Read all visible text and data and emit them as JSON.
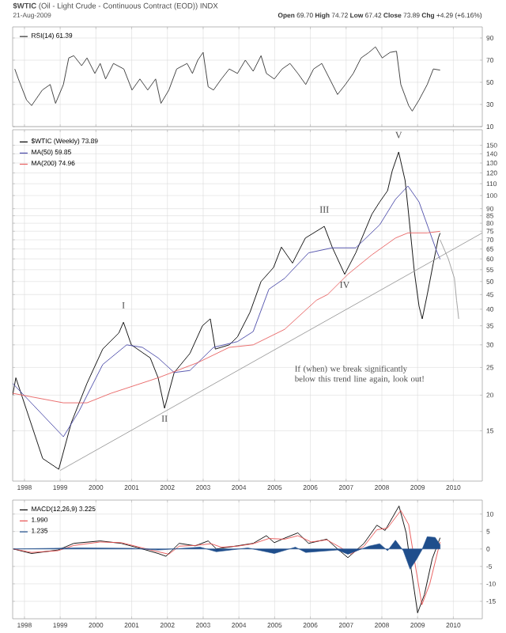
{
  "chart_data": [
    {
      "type": "line",
      "title": "**$WTIC** (Oil - Light Crude - Continuous Contract (EOD)) INDX",
      "subtitle": "21-Aug-2009",
      "annotations": [
        "**Open** 69.70 **High** 74.72 **Low** 67.42 **Close** 73.89 **Chg** +4.29 (+6.16%)"
      ],
      "series": [
        {
          "name": "RSI(14) 61.39",
          "color": "#333333",
          "x": [
            1997.73,
            1997.83,
            1998.06,
            1998.2,
            1998.5,
            1998.72,
            1998.87,
            1999.09,
            1999.24,
            1999.38,
            1999.6,
            1999.75,
            1999.97,
            2000.12,
            2000.27,
            2000.49,
            2000.78,
            2001.01,
            2001.23,
            2001.45,
            2001.67,
            2001.82,
            2002.04,
            2002.26,
            2002.55,
            2002.7,
            2002.85,
            2003.0,
            2003.14,
            2003.29,
            2003.51,
            2003.73,
            2003.96,
            2004.18,
            2004.4,
            2004.62,
            2004.77,
            2004.99,
            2005.21,
            2005.43,
            2005.65,
            2005.87,
            2006.09,
            2006.32,
            2006.54,
            2006.76,
            2006.98,
            2007.2,
            2007.42,
            2007.64,
            2007.82,
            2008.01,
            2008.23,
            2008.41,
            2008.53,
            2008.75,
            2008.85,
            2009.04,
            2009.27,
            2009.44,
            2009.63
          ],
          "values": [
            62,
            53,
            34,
            29,
            43,
            48,
            31,
            48,
            72,
            74,
            65,
            72,
            58,
            67,
            53,
            67,
            62,
            43,
            53,
            43,
            53,
            31,
            43,
            62,
            67,
            58,
            70,
            77,
            46,
            43,
            53,
            62,
            58,
            70,
            60,
            74,
            58,
            53,
            62,
            67,
            58,
            48,
            62,
            67,
            53,
            39,
            48,
            58,
            72,
            77,
            82,
            72,
            77,
            78,
            48,
            29,
            24,
            34,
            48,
            62,
            61
          ]
        }
      ],
      "xlim": [
        1997.67,
        2010.81
      ],
      "xticks": [
        1998,
        1999,
        2000,
        2001,
        2002,
        2003,
        2004,
        2005,
        2006,
        2007,
        2008,
        2009,
        2010
      ],
      "ylim": [
        10,
        100
      ],
      "yticks": [
        10,
        30,
        50,
        70,
        90
      ],
      "grid": true,
      "legend": "top left",
      "tick_labels": "y"
    },
    {
      "type": "line",
      "annotations": [
        {
          "text": "I",
          "x": 2000.77,
          "y": 36
        },
        {
          "text": "II",
          "x": 2001.92,
          "y": 18
        },
        {
          "text": "III",
          "x": 2006.39,
          "y": 78
        },
        {
          "text": "IV",
          "x": 2006.96,
          "y": 53
        },
        {
          "text": "V",
          "x": 2008.47,
          "y": 142
        },
        "If (when) we break significantly below this trend line again, look out!"
      ],
      "series": [
        {
          "name": "$WTIC (Weekly) 73.89",
          "color": "#000000",
          "x": [
            1997.67,
            1997.76,
            1998.51,
            1998.96,
            1999.31,
            1999.75,
            2000.19,
            2000.64,
            2000.77,
            2000.99,
            2001.52,
            2001.74,
            2001.92,
            2002.19,
            2002.63,
            2002.98,
            2003.2,
            2003.34,
            2003.73,
            2003.96,
            2004.31,
            2004.62,
            2004.97,
            2005.19,
            2005.5,
            2005.86,
            2006.39,
            2006.61,
            2006.96,
            2007.27,
            2007.72,
            2007.94,
            2008.16,
            2008.29,
            2008.47,
            2008.65,
            2008.73,
            2008.91,
            2009.04,
            2009.13,
            2009.27,
            2009.44,
            2009.58,
            2009.63
          ],
          "values": [
            20,
            23,
            12,
            11,
            16,
            22,
            29,
            33,
            36,
            30,
            27,
            23,
            18,
            24,
            28,
            35,
            37,
            29,
            30,
            32,
            39,
            50,
            56,
            66,
            58,
            71,
            78,
            66,
            53,
            63,
            86,
            95,
            104,
            122,
            142,
            113,
            91,
            54,
            41,
            37,
            45,
            58,
            71,
            73.89
          ]
        },
        {
          "name": "MA(50) 59.85",
          "color": "#4a4aa8",
          "x": [
            1997.67,
            1999.09,
            1999.53,
            2000.19,
            2000.86,
            2001.3,
            2001.74,
            2002.19,
            2002.63,
            2003.29,
            2003.96,
            2004.4,
            2004.84,
            2005.28,
            2005.95,
            2006.61,
            2007.27,
            2007.94,
            2008.38,
            2008.73,
            2009.04,
            2009.35,
            2009.53,
            2009.63
          ],
          "values": [
            22,
            14.3,
            17.6,
            25.6,
            30,
            29.4,
            27,
            24,
            24.4,
            29.4,
            30.8,
            33.4,
            47,
            51.3,
            63,
            65.6,
            65.6,
            79,
            97,
            108,
            95,
            74,
            64,
            59.85
          ]
        },
        {
          "name": "MA(200) 74.96",
          "color": "#e86060",
          "x": [
            1997.67,
            1999.09,
            1999.75,
            2000.42,
            2001.74,
            2002.85,
            2003.73,
            2004.4,
            2005.28,
            2006.17,
            2006.48,
            2007.05,
            2007.72,
            2008.38,
            2008.73,
            2009.27,
            2009.63
          ],
          "values": [
            20.3,
            18.8,
            18.8,
            20.3,
            23,
            26,
            29.4,
            30,
            34,
            43,
            45,
            53,
            62,
            71,
            74,
            74,
            74.96
          ]
        },
        {
          "color": "#999999",
          "x": [
            1999.0,
            2010.81
          ],
          "values": [
            10.9,
            74
          ]
        },
        {
          "color": "#999999",
          "x": [
            2009.63,
            2009.86,
            2010.03,
            2010.09,
            2010.12,
            2010.15
          ],
          "values": [
            70,
            60,
            51.3,
            43,
            40,
            37
          ]
        }
      ],
      "xlim": [
        1997.67,
        2010.81
      ],
      "xticks": [
        1998,
        1999,
        2000,
        2001,
        2002,
        2003,
        2004,
        2005,
        2006,
        2007,
        2008,
        2009,
        2010
      ],
      "ylim": [
        10,
        170
      ],
      "log": true,
      "yticks": [
        15,
        20,
        25,
        30,
        35,
        40,
        45,
        50,
        55,
        60,
        65,
        70,
        75,
        80,
        85,
        90,
        100,
        110,
        120,
        130,
        140,
        150
      ],
      "grid": true,
      "legend": "top left"
    },
    {
      "type": "line",
      "series": [
        {
          "name": "MACD(12,26,9) 3.225",
          "color": "#000000",
          "x": [
            1997.69,
            1998.2,
            1998.94,
            1999.38,
            2000.12,
            2000.71,
            2001.3,
            2001.74,
            2001.96,
            2002.33,
            2002.78,
            2003.14,
            2003.37,
            2003.96,
            2004.4,
            2004.77,
            2004.99,
            2005.28,
            2005.65,
            2005.95,
            2006.46,
            2006.76,
            2007.05,
            2007.5,
            2007.86,
            2008.09,
            2008.48,
            2008.68,
            2008.82,
            2009.0,
            2009.19,
            2009.41,
            2009.63
          ],
          "values": [
            0,
            -1.3,
            -0.3,
            1.6,
            2.3,
            1.6,
            0,
            -1.3,
            -2.1,
            1.6,
            0.9,
            2.3,
            0,
            0.9,
            1.6,
            3.8,
            1.8,
            3.1,
            4.6,
            1.6,
            2.8,
            0,
            -2.5,
            1.6,
            6.8,
            5.3,
            12.3,
            4.6,
            -5.8,
            -18.3,
            -13.1,
            -2.8,
            3.2
          ]
        },
        {
          "name": "1.990",
          "color": "#e85050",
          "x": [
            1997.69,
            1998.2,
            1998.94,
            1999.38,
            2000.12,
            2000.71,
            2001.3,
            2001.74,
            2002.04,
            2002.33,
            2002.78,
            2003.22,
            2003.51,
            2003.96,
            2004.4,
            2004.84,
            2005.28,
            2005.65,
            2006.02,
            2006.46,
            2006.83,
            2007.13,
            2007.5,
            2007.86,
            2008.16,
            2008.53,
            2008.75,
            2008.94,
            2009.12,
            2009.34,
            2009.63
          ],
          "values": [
            0,
            -1,
            -0.5,
            1,
            2,
            1.8,
            0.3,
            -0.8,
            -1.5,
            0.8,
            1,
            1.5,
            0.5,
            0.8,
            1.5,
            3,
            2.8,
            3.8,
            2,
            2.6,
            0.5,
            -1.5,
            0.8,
            5.5,
            6,
            11,
            7,
            -5,
            -16,
            -10,
            2.0
          ]
        },
        {
          "name": "1.235",
          "color": "#1f4e8c",
          "type": "area",
          "x": [
            1997.69,
            1999.53,
            2001.01,
            2001.74,
            2002.92,
            2003.37,
            2004.25,
            2004.99,
            2005.58,
            2005.87,
            2006.76,
            2007.05,
            2007.64,
            2007.94,
            2008.16,
            2008.38,
            2008.6,
            2008.79,
            2008.97,
            2009.12,
            2009.27,
            2009.49,
            2009.63
          ],
          "values": [
            0,
            0.3,
            0.2,
            -0.3,
            0.5,
            -0.8,
            0.3,
            -1.3,
            0.5,
            -1,
            -0.3,
            -1.5,
            0.8,
            1.5,
            -0.5,
            2.5,
            -0.5,
            -5.8,
            -3,
            -0.3,
            3.5,
            3.3,
            1.2
          ]
        }
      ],
      "xlim": [
        1997.67,
        2010.81
      ],
      "xticks": [
        1998,
        1999,
        2000,
        2001,
        2002,
        2003,
        2004,
        2005,
        2006,
        2007,
        2008,
        2009,
        2010
      ],
      "ylim": [
        -20,
        14
      ],
      "yticks": [
        -15,
        -10,
        -5,
        0,
        5,
        10
      ],
      "grid": true,
      "legend": "top left"
    }
  ]
}
